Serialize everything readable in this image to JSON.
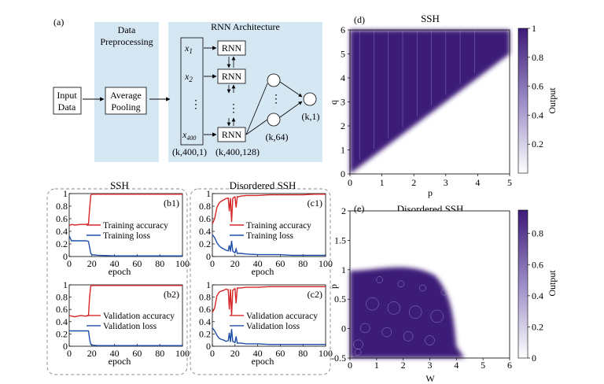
{
  "panel_a": {
    "label": "(a)",
    "stage1_title": [
      "Data",
      "Preprocessing"
    ],
    "stage2_title": "RNN Architecture",
    "input_label": [
      "Input",
      "Data"
    ],
    "pooling_label": [
      "Average",
      "Pooling"
    ],
    "x_labels": [
      "x",
      "x",
      "x"
    ],
    "x_subs": [
      "1",
      "2",
      "400"
    ],
    "rnn_label": "RNN",
    "dots": "⋮",
    "shape_input": "(k,400,1)",
    "shape_rnn": "(k,400,128)",
    "shape_hidden": "(k,64)",
    "shape_out": "(k,1)"
  },
  "panel_b_title": "SSH",
  "panel_c_title": "Disordered SSH",
  "panel_d": {
    "label": "(d)",
    "title": "SSH",
    "xlabel": "p",
    "ylabel": "q",
    "cbar_label": "Output"
  },
  "panel_e": {
    "label": "(e)",
    "title": "Disordered SSH",
    "xlabel": "W",
    "ylabel": "p",
    "cbar_label": "Output"
  },
  "chart_data": [
    {
      "id": "b1",
      "type": "line",
      "label": "(b1)",
      "xlabel": "epoch",
      "xticks": [
        0,
        20,
        40,
        60,
        80,
        100
      ],
      "yticks": [
        0,
        0.2,
        0.4,
        0.6,
        0.8,
        1
      ],
      "xlim": [
        0,
        100
      ],
      "ylim": [
        0,
        1
      ],
      "series": [
        {
          "name": "Training accuracy",
          "color": "#d62728",
          "x": [
            0,
            2,
            5,
            10,
            15,
            17,
            18,
            19,
            20,
            25,
            40,
            60,
            80,
            100
          ],
          "y": [
            0.49,
            0.51,
            0.5,
            0.51,
            0.51,
            0.52,
            0.75,
            0.97,
            0.99,
            0.99,
            0.99,
            0.99,
            0.99,
            0.99
          ]
        },
        {
          "name": "Training loss",
          "color": "#1f4fa8",
          "x": [
            0,
            1,
            2,
            5,
            10,
            15,
            17,
            18,
            19,
            20,
            25,
            40,
            60,
            80,
            100
          ],
          "y": [
            0.33,
            0.29,
            0.25,
            0.25,
            0.25,
            0.25,
            0.24,
            0.15,
            0.05,
            0.03,
            0.02,
            0.01,
            0.01,
            0.01,
            0.01
          ]
        }
      ]
    },
    {
      "id": "b2",
      "type": "line",
      "label": "(b2)",
      "xlabel": "epoch",
      "xticks": [
        0,
        20,
        40,
        60,
        80,
        100
      ],
      "yticks": [
        0,
        0.2,
        0.4,
        0.6,
        0.8,
        1
      ],
      "xlim": [
        0,
        100
      ],
      "ylim": [
        0,
        1
      ],
      "series": [
        {
          "name": "Validation accuracy",
          "color": "#d62728",
          "x": [
            0,
            5,
            10,
            15,
            17,
            18,
            19,
            20,
            25,
            40,
            60,
            80,
            100
          ],
          "y": [
            0.5,
            0.48,
            0.5,
            0.49,
            0.5,
            0.8,
            0.98,
            0.99,
            0.99,
            0.99,
            0.99,
            0.99,
            0.99
          ]
        },
        {
          "name": "Validation loss",
          "color": "#1f4fa8",
          "x": [
            0,
            5,
            10,
            15,
            17,
            18,
            19,
            20,
            25,
            40,
            60,
            80,
            100
          ],
          "y": [
            0.25,
            0.25,
            0.25,
            0.25,
            0.25,
            0.12,
            0.03,
            0.02,
            0.01,
            0.01,
            0.01,
            0.01,
            0.01
          ]
        }
      ]
    },
    {
      "id": "c1",
      "type": "line",
      "label": "(c1)",
      "xlabel": "epoch",
      "xticks": [
        0,
        20,
        40,
        60,
        80,
        100
      ],
      "yticks": [
        0,
        0.2,
        0.4,
        0.6,
        0.8,
        1
      ],
      "xlim": [
        0,
        100
      ],
      "ylim": [
        0,
        1
      ],
      "series": [
        {
          "name": "Training accuracy",
          "color": "#d62728",
          "x": [
            0,
            2,
            4,
            6,
            8,
            10,
            12,
            14,
            15,
            16,
            17,
            18,
            19,
            20,
            21,
            22,
            23,
            25,
            30,
            40,
            50,
            60,
            70,
            80,
            90,
            100
          ],
          "y": [
            0.52,
            0.6,
            0.78,
            0.85,
            0.88,
            0.9,
            0.92,
            0.93,
            0.72,
            0.93,
            0.55,
            0.92,
            0.94,
            0.95,
            0.78,
            0.95,
            0.95,
            0.96,
            0.97,
            0.97,
            0.98,
            0.98,
            0.98,
            0.98,
            0.99,
            0.99
          ]
        },
        {
          "name": "Training loss",
          "color": "#1f4fa8",
          "x": [
            0,
            2,
            4,
            6,
            8,
            10,
            12,
            14,
            15,
            16,
            17,
            18,
            19,
            20,
            21,
            22,
            25,
            30,
            40,
            50,
            60,
            70,
            80,
            90,
            100
          ],
          "y": [
            0.35,
            0.3,
            0.22,
            0.17,
            0.14,
            0.12,
            0.1,
            0.09,
            0.18,
            0.08,
            0.25,
            0.09,
            0.07,
            0.06,
            0.12,
            0.05,
            0.05,
            0.04,
            0.03,
            0.03,
            0.03,
            0.02,
            0.02,
            0.02,
            0.02
          ]
        }
      ]
    },
    {
      "id": "c2",
      "type": "line",
      "label": "(c2)",
      "xlabel": "epoch",
      "xticks": [
        0,
        20,
        40,
        60,
        80,
        100
      ],
      "yticks": [
        0,
        0.2,
        0.4,
        0.6,
        0.8,
        1
      ],
      "xlim": [
        0,
        100
      ],
      "ylim": [
        0,
        1
      ],
      "series": [
        {
          "name": "Validation accuracy",
          "color": "#d62728",
          "x": [
            0,
            2,
            4,
            6,
            8,
            10,
            12,
            14,
            15,
            16,
            17,
            18,
            19,
            20,
            21,
            22,
            25,
            30,
            40,
            50,
            60,
            70,
            80,
            90,
            100
          ],
          "y": [
            0.55,
            0.62,
            0.82,
            0.88,
            0.9,
            0.91,
            0.93,
            0.92,
            0.6,
            0.93,
            0.5,
            0.91,
            0.93,
            0.94,
            0.7,
            0.95,
            0.95,
            0.96,
            0.96,
            0.97,
            0.97,
            0.97,
            0.97,
            0.97,
            0.97
          ]
        },
        {
          "name": "Validation loss",
          "color": "#1f4fa8",
          "x": [
            0,
            2,
            4,
            6,
            8,
            10,
            12,
            14,
            15,
            16,
            17,
            18,
            19,
            20,
            21,
            22,
            25,
            30,
            40,
            50,
            60,
            70,
            80,
            90,
            100
          ],
          "y": [
            0.3,
            0.25,
            0.18,
            0.13,
            0.11,
            0.1,
            0.08,
            0.09,
            0.22,
            0.07,
            0.28,
            0.08,
            0.07,
            0.06,
            0.16,
            0.05,
            0.05,
            0.04,
            0.04,
            0.03,
            0.03,
            0.03,
            0.03,
            0.03,
            0.03
          ]
        }
      ]
    },
    {
      "id": "d",
      "type": "heatmap",
      "title": "SSH",
      "xlabel": "p",
      "ylabel": "q",
      "xlim": [
        0,
        5
      ],
      "ylim": [
        0,
        6
      ],
      "xticks": [
        0,
        1,
        2,
        3,
        4,
        5
      ],
      "yticks": [
        0,
        1,
        2,
        3,
        4,
        5,
        6
      ],
      "boundary": "q = p",
      "above_boundary_output": 1,
      "below_boundary_output": 0,
      "colorbar": {
        "label": "Output",
        "ticks": [
          0.2,
          0.4,
          0.6,
          0.8,
          1
        ],
        "range": [
          0,
          1
        ],
        "low_color": "#ffffff",
        "high_color": "#3d1a78"
      }
    },
    {
      "id": "e",
      "type": "heatmap",
      "title": "Disordered SSH",
      "xlabel": "W",
      "ylabel": "p",
      "xlim": [
        0,
        6
      ],
      "ylim": [
        -0.5,
        2
      ],
      "xticks": [
        0,
        1,
        2,
        3,
        4,
        5,
        6
      ],
      "yticks": [
        -0.5,
        0,
        0.5,
        1,
        1.5,
        2
      ],
      "region": "output near 1 for small W and p below roughly 1, boundary near W = 4",
      "colorbar": {
        "label": "Output",
        "ticks": [
          0,
          0.2,
          0.4,
          0.6,
          0.8
        ],
        "range": [
          0,
          0.95
        ],
        "low_color": "#ffffff",
        "high_color": "#3d1a78"
      }
    }
  ]
}
